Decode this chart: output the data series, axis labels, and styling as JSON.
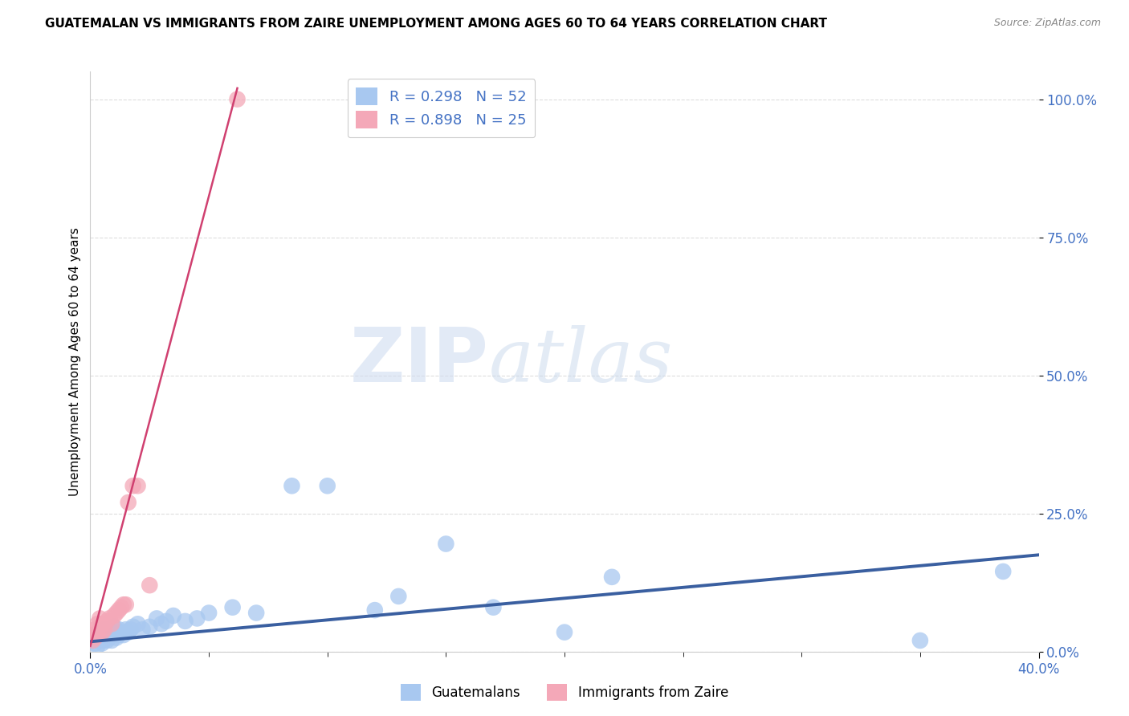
{
  "title": "GUATEMALAN VS IMMIGRANTS FROM ZAIRE UNEMPLOYMENT AMONG AGES 60 TO 64 YEARS CORRELATION CHART",
  "source": "Source: ZipAtlas.com",
  "ylabel": "Unemployment Among Ages 60 to 64 years",
  "xlim": [
    0.0,
    0.4
  ],
  "ylim": [
    0.0,
    1.05
  ],
  "xticks_show": [
    0.0,
    0.4
  ],
  "yticks": [
    0.0,
    0.25,
    0.5,
    0.75,
    1.0
  ],
  "ytick_minor": [
    0.0,
    0.1,
    0.2,
    0.3,
    0.4,
    0.5,
    0.6,
    0.7,
    0.8,
    0.9,
    1.0
  ],
  "blue_color": "#A8C8F0",
  "pink_color": "#F4A8B8",
  "blue_line_color": "#3A5FA0",
  "pink_line_color": "#D04070",
  "tick_color": "#4472C4",
  "r_blue": 0.298,
  "n_blue": 52,
  "r_pink": 0.898,
  "n_pink": 25,
  "watermark_zip": "ZIP",
  "watermark_atlas": "atlas",
  "blue_scatter_x": [
    0.001,
    0.002,
    0.002,
    0.003,
    0.003,
    0.004,
    0.004,
    0.004,
    0.005,
    0.005,
    0.005,
    0.006,
    0.006,
    0.007,
    0.007,
    0.008,
    0.008,
    0.009,
    0.009,
    0.01,
    0.01,
    0.011,
    0.012,
    0.012,
    0.013,
    0.014,
    0.015,
    0.016,
    0.017,
    0.018,
    0.02,
    0.022,
    0.025,
    0.028,
    0.03,
    0.032,
    0.035,
    0.04,
    0.045,
    0.05,
    0.06,
    0.07,
    0.085,
    0.1,
    0.12,
    0.13,
    0.15,
    0.17,
    0.2,
    0.22,
    0.35,
    0.385
  ],
  "blue_scatter_y": [
    0.02,
    0.015,
    0.025,
    0.01,
    0.03,
    0.02,
    0.025,
    0.03,
    0.015,
    0.02,
    0.035,
    0.025,
    0.04,
    0.02,
    0.03,
    0.025,
    0.04,
    0.02,
    0.035,
    0.03,
    0.045,
    0.025,
    0.03,
    0.04,
    0.035,
    0.03,
    0.04,
    0.035,
    0.04,
    0.045,
    0.05,
    0.04,
    0.045,
    0.06,
    0.05,
    0.055,
    0.065,
    0.055,
    0.06,
    0.07,
    0.08,
    0.07,
    0.3,
    0.3,
    0.075,
    0.1,
    0.195,
    0.08,
    0.035,
    0.135,
    0.02,
    0.145
  ],
  "pink_scatter_x": [
    0.001,
    0.001,
    0.002,
    0.002,
    0.003,
    0.003,
    0.004,
    0.004,
    0.005,
    0.005,
    0.006,
    0.007,
    0.008,
    0.009,
    0.01,
    0.011,
    0.012,
    0.013,
    0.014,
    0.015,
    0.016,
    0.018,
    0.02,
    0.025,
    0.062
  ],
  "pink_scatter_y": [
    0.02,
    0.03,
    0.025,
    0.04,
    0.03,
    0.05,
    0.04,
    0.06,
    0.035,
    0.05,
    0.04,
    0.055,
    0.06,
    0.05,
    0.065,
    0.07,
    0.075,
    0.08,
    0.085,
    0.085,
    0.27,
    0.3,
    0.3,
    0.12,
    1.0
  ],
  "background_color": "#FFFFFF",
  "grid_color": "#DDDDDD"
}
